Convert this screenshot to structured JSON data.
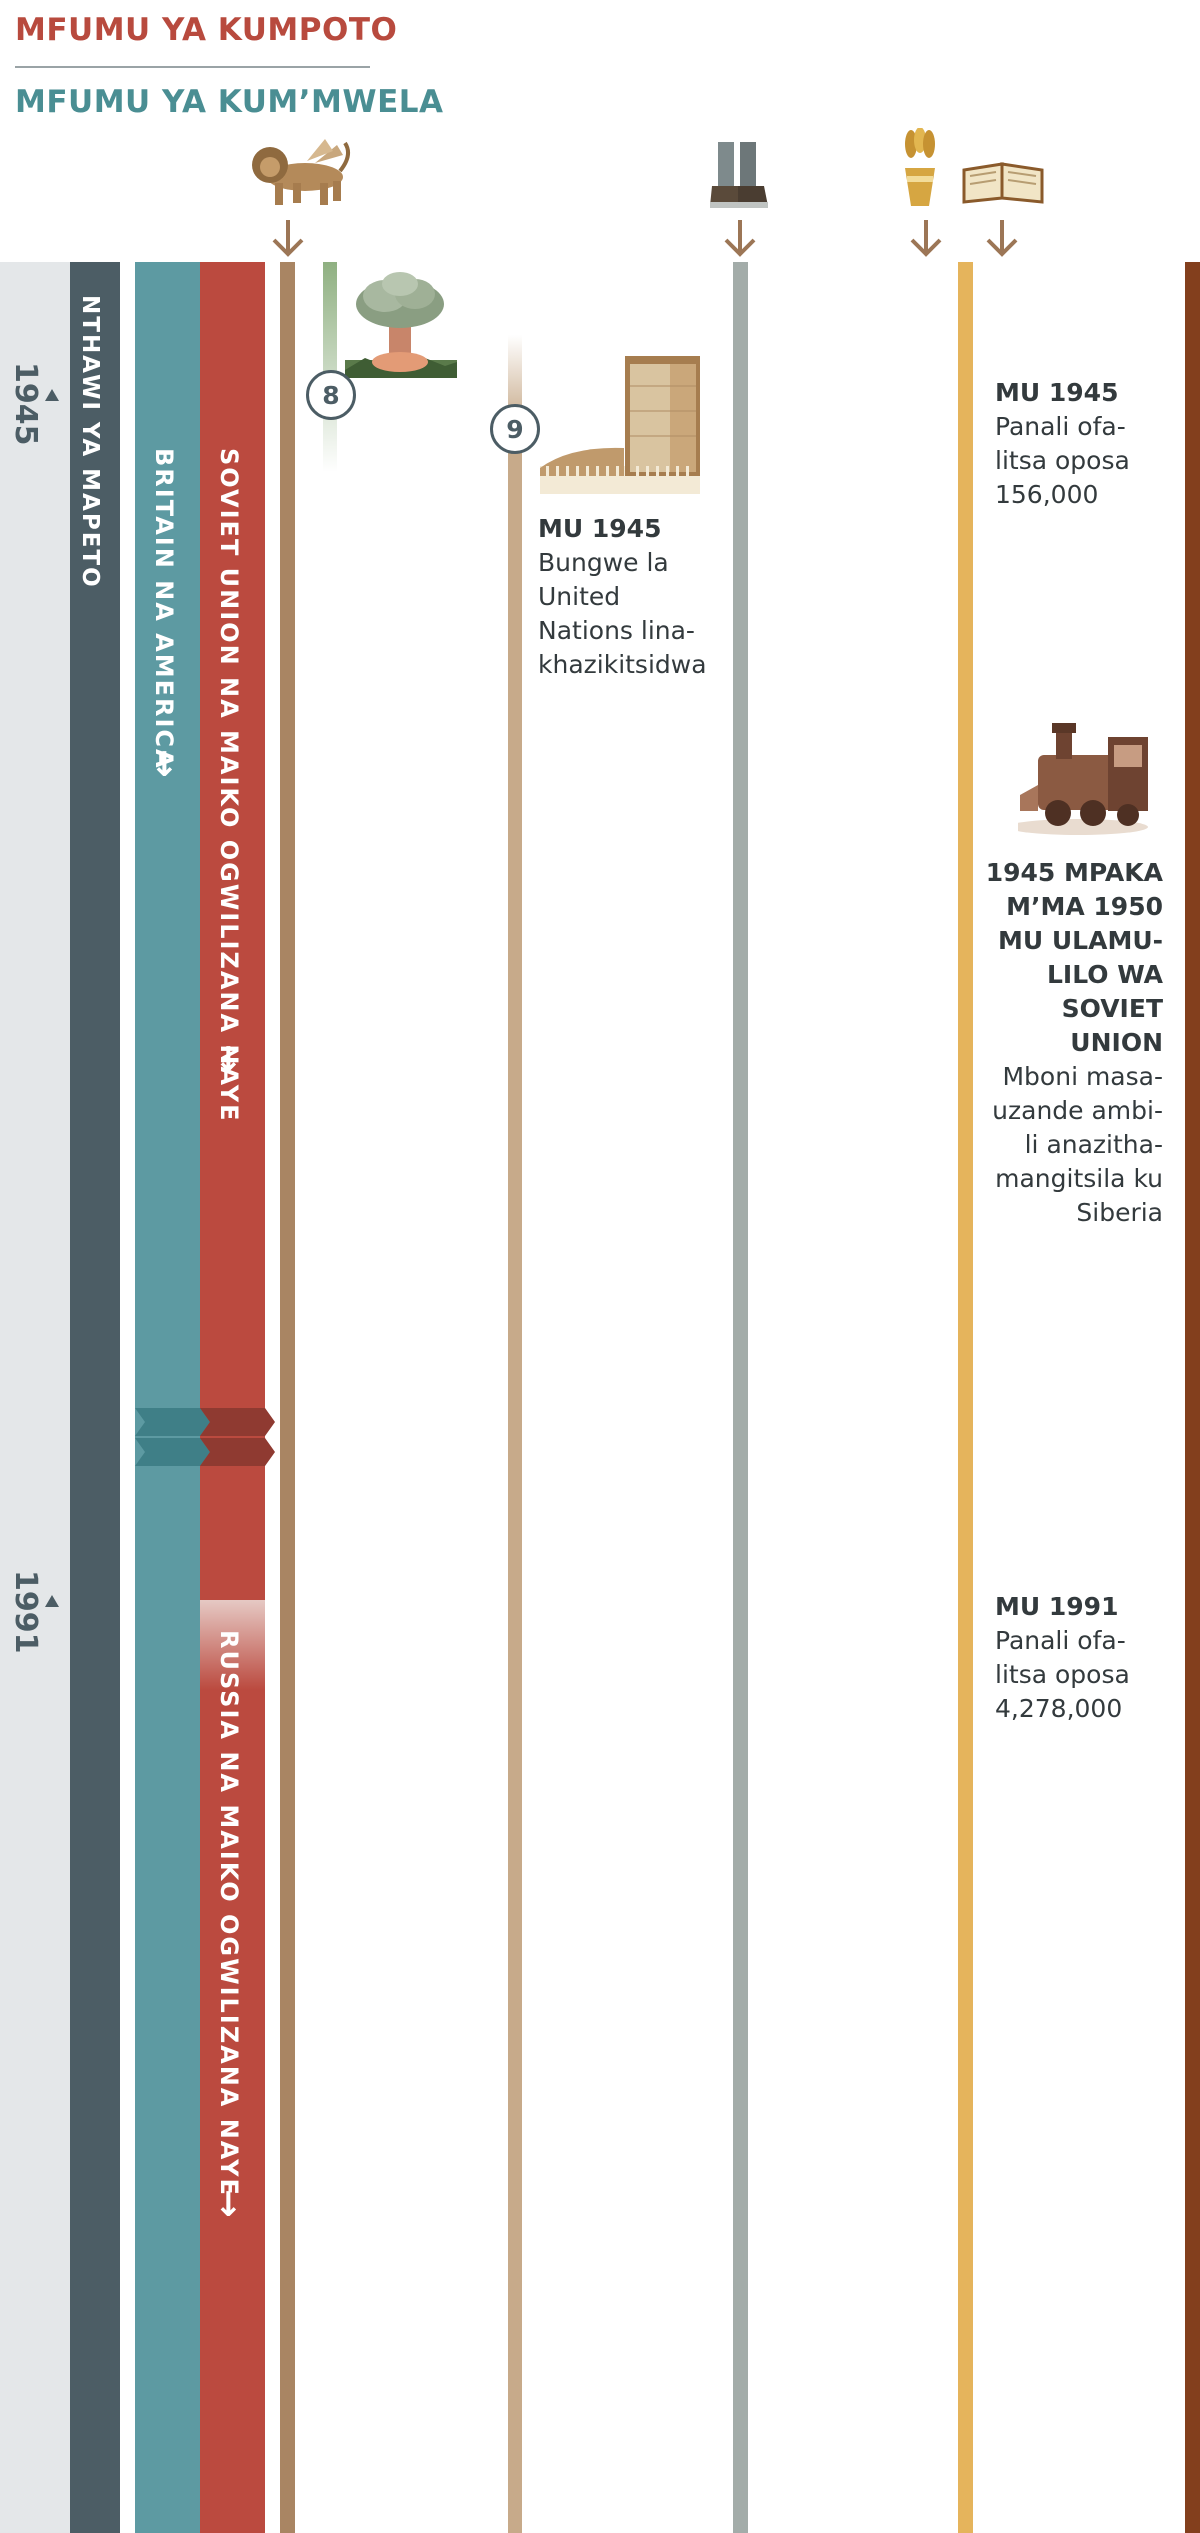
{
  "header": {
    "king_south": "MFUMU YA KUMPOTO",
    "king_north": "MFUMU YA KUM’MWELA"
  },
  "icons": [
    "lion-icon",
    "iron-clay-feet-icon",
    "wheat-bundle-icon",
    "open-bible-icon",
    "mushroom-cloud-icon",
    "un-building-icon",
    "steam-train-icon"
  ],
  "timeline": {
    "year_1945": "1945",
    "year_1991": "1991",
    "col_gray_label": "NTHAWI YA MAPETO",
    "col_teal_label": "BRITAIN NA AMERICA",
    "col_red_label_1": "SOVIET UNION NA MAIKO OGWILIZANA NAYE",
    "col_red_label_2": "RUSSIA NA MAIKO OGWILIZANA NAYE",
    "arrow_glyph": "↓"
  },
  "markers": {
    "m8": "8",
    "m9": "9"
  },
  "events": {
    "un": {
      "title": "MU 1945",
      "lines": [
        "Bungwe la",
        "United",
        "Nations lina-",
        "khazikitsidwa"
      ]
    },
    "pub_1945": {
      "title": "MU 1945",
      "lines": [
        "Panali ofa-",
        "litsa oposa",
        "156,000"
      ]
    },
    "siberia": {
      "title_lines": [
        "1945 MPAKA",
        "M’MA 1950",
        "MU ULAMU-",
        "LILO WA",
        "SOVIET",
        "UNION"
      ],
      "lines": [
        "Mboni masa-",
        "uzande ambi-",
        "li anazitha-",
        "mangitsila ku",
        "Siberia"
      ]
    },
    "pub_1991": {
      "title": "MU 1991",
      "lines": [
        "Panali ofa-",
        "litsa oposa",
        "4,278,000"
      ]
    }
  },
  "colors": {
    "south_red": "#b84a3e",
    "north_teal": "#4a8e93",
    "slate": "#4c5d65",
    "teal_col": "#5d9aa2",
    "red_col": "#bb4a3f",
    "gold_col": "#e5b45c",
    "brown_col": "#833f1d"
  }
}
